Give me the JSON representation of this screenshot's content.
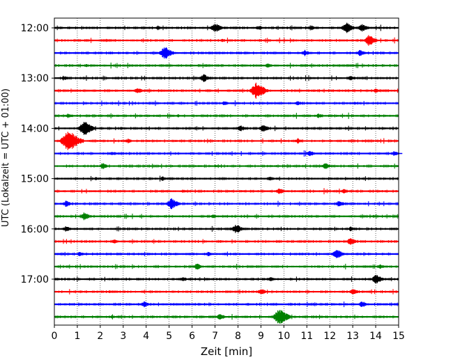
{
  "chart_data": {
    "type": "line",
    "title": "",
    "xlabel": "Zeit  [min]",
    "ylabel": "UTC (Lokalzeit = UTC + 01:00)",
    "xlim": [
      0,
      15
    ],
    "x_ticks": [
      "0",
      "1",
      "2",
      "3",
      "4",
      "5",
      "6",
      "7",
      "8",
      "9",
      "10",
      "11",
      "12",
      "13",
      "14",
      "15"
    ],
    "y_ticks": [
      "12:00",
      "13:00",
      "14:00",
      "15:00",
      "16:00",
      "17:00"
    ],
    "grid": "vertical dotted",
    "trace_interval_min": 15,
    "trace_colors": [
      "#000000",
      "#ff0000",
      "#0000ff",
      "#008000"
    ],
    "traces": [
      {
        "start": "12:00",
        "color": "#000000",
        "events": [
          [
            7.0,
            0.6
          ],
          [
            12.7,
            0.7
          ],
          [
            13.4,
            0.5
          ],
          [
            4.5,
            0.3
          ],
          [
            8.9,
            0.3
          ],
          [
            11.2,
            0.3
          ]
        ]
      },
      {
        "start": "12:15",
        "color": "#ff0000",
        "events": [
          [
            13.7,
            0.7
          ],
          [
            7.3,
            0.2
          ],
          [
            2.2,
            0.2
          ]
        ]
      },
      {
        "start": "12:30",
        "color": "#0000ff",
        "events": [
          [
            4.8,
            0.8
          ],
          [
            10.9,
            0.4
          ],
          [
            13.3,
            0.4
          ],
          [
            2.4,
            0.2
          ]
        ]
      },
      {
        "start": "12:45",
        "color": "#008000",
        "events": [
          [
            9.3,
            0.3
          ],
          [
            1.4,
            0.2
          ],
          [
            6.6,
            0.2
          ]
        ]
      },
      {
        "start": "13:00",
        "color": "#000000",
        "events": [
          [
            6.5,
            0.5
          ],
          [
            0.4,
            0.3
          ],
          [
            12.9,
            0.3
          ]
        ]
      },
      {
        "start": "13:15",
        "color": "#ff0000",
        "events": [
          [
            8.8,
            1.0
          ],
          [
            3.6,
            0.4
          ],
          [
            14.0,
            0.3
          ]
        ]
      },
      {
        "start": "13:30",
        "color": "#0000ff",
        "events": [
          [
            7.4,
            0.3
          ],
          [
            10.6,
            0.3
          ],
          [
            13.1,
            0.2
          ]
        ]
      },
      {
        "start": "13:45",
        "color": "#008000",
        "events": [
          [
            0.6,
            0.3
          ],
          [
            5.4,
            0.2
          ],
          [
            11.5,
            0.3
          ]
        ]
      },
      {
        "start": "14:00",
        "color": "#000000",
        "events": [
          [
            1.3,
            0.9
          ],
          [
            8.1,
            0.4
          ],
          [
            9.1,
            0.5
          ],
          [
            2.9,
            0.2
          ]
        ]
      },
      {
        "start": "14:15",
        "color": "#ff0000",
        "events": [
          [
            0.6,
            1.3
          ],
          [
            3.2,
            0.3
          ],
          [
            10.6,
            0.3
          ]
        ]
      },
      {
        "start": "14:30",
        "color": "#0000ff",
        "events": [
          [
            2.5,
            0.3
          ],
          [
            11.1,
            0.4
          ],
          [
            14.8,
            0.3
          ]
        ]
      },
      {
        "start": "14:45",
        "color": "#008000",
        "events": [
          [
            2.1,
            0.4
          ],
          [
            11.8,
            0.4
          ],
          [
            7.0,
            0.2
          ]
        ]
      },
      {
        "start": "15:00",
        "color": "#000000",
        "events": [
          [
            4.7,
            0.3
          ],
          [
            9.4,
            0.3
          ],
          [
            1.8,
            0.2
          ]
        ]
      },
      {
        "start": "15:15",
        "color": "#ff0000",
        "events": [
          [
            9.8,
            0.4
          ],
          [
            12.6,
            0.3
          ],
          [
            5.6,
            0.2
          ]
        ]
      },
      {
        "start": "15:30",
        "color": "#0000ff",
        "events": [
          [
            5.1,
            0.7
          ],
          [
            0.5,
            0.4
          ],
          [
            12.4,
            0.4
          ]
        ]
      },
      {
        "start": "15:45",
        "color": "#008000",
        "events": [
          [
            1.3,
            0.5
          ],
          [
            6.9,
            0.3
          ],
          [
            13.9,
            0.2
          ]
        ]
      },
      {
        "start": "16:00",
        "color": "#000000",
        "events": [
          [
            7.9,
            0.6
          ],
          [
            0.5,
            0.4
          ],
          [
            12.9,
            0.3
          ]
        ]
      },
      {
        "start": "16:15",
        "color": "#ff0000",
        "events": [
          [
            12.9,
            0.5
          ],
          [
            2.6,
            0.3
          ],
          [
            7.2,
            0.2
          ]
        ]
      },
      {
        "start": "16:30",
        "color": "#0000ff",
        "events": [
          [
            12.3,
            0.6
          ],
          [
            1.1,
            0.3
          ],
          [
            6.7,
            0.3
          ]
        ]
      },
      {
        "start": "16:45",
        "color": "#008000",
        "events": [
          [
            6.2,
            0.4
          ],
          [
            2.9,
            0.2
          ],
          [
            14.2,
            0.3
          ]
        ]
      },
      {
        "start": "17:00",
        "color": "#000000",
        "events": [
          [
            14.0,
            0.6
          ],
          [
            5.6,
            0.3
          ],
          [
            9.4,
            0.3
          ]
        ]
      },
      {
        "start": "17:15",
        "color": "#ff0000",
        "events": [
          [
            9.0,
            0.4
          ],
          [
            13.0,
            0.4
          ],
          [
            2.4,
            0.2
          ]
        ]
      },
      {
        "start": "17:30",
        "color": "#0000ff",
        "events": [
          [
            3.9,
            0.4
          ],
          [
            13.4,
            0.4
          ],
          [
            8.4,
            0.2
          ]
        ]
      },
      {
        "start": "17:45",
        "color": "#008000",
        "events": [
          [
            9.8,
            1.0
          ],
          [
            7.2,
            0.4
          ],
          [
            2.5,
            0.2
          ]
        ]
      }
    ]
  }
}
